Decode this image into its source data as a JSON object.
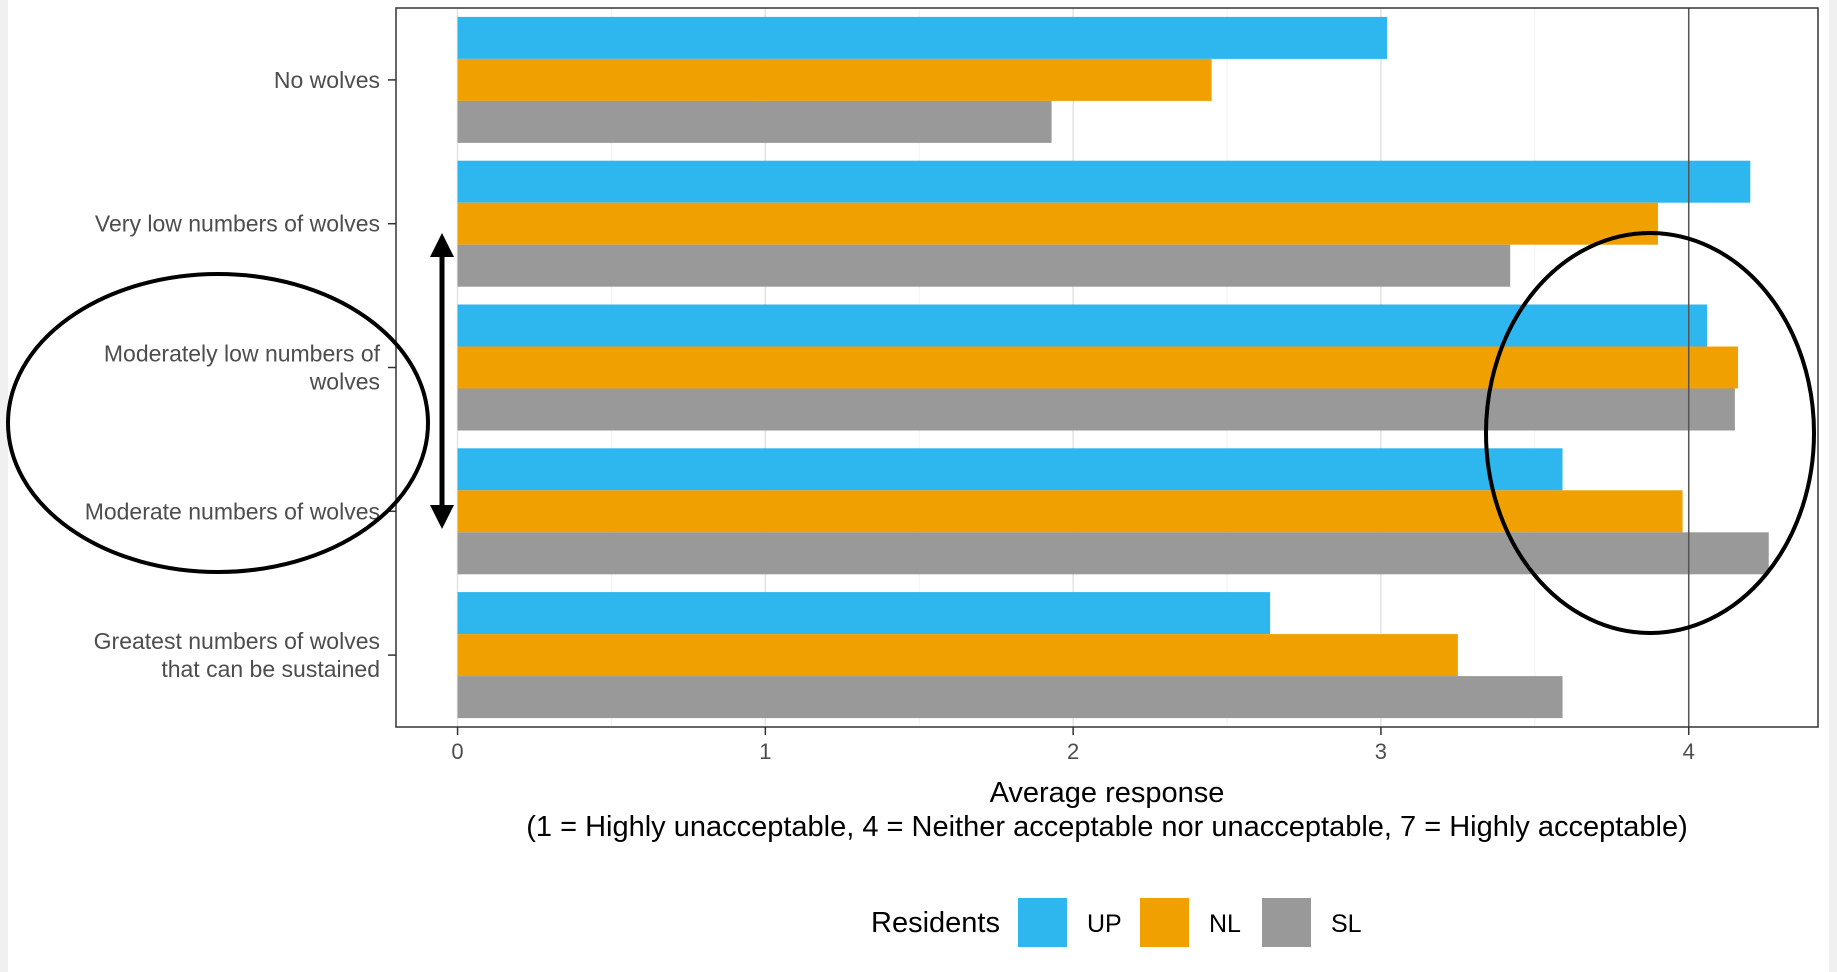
{
  "chart_data": {
    "type": "bar",
    "orientation": "horizontal",
    "categories": [
      [
        "No wolves"
      ],
      [
        "Very low numbers of wolves"
      ],
      [
        "Moderately low numbers of",
        "wolves"
      ],
      [
        "Moderate numbers of wolves"
      ],
      [
        "Greatest numbers of wolves",
        "that can be sustained"
      ]
    ],
    "series": [
      {
        "name": "UP",
        "color": "#2eb6ee",
        "values": [
          3.02,
          4.2,
          4.06,
          3.59,
          2.64
        ]
      },
      {
        "name": "NL",
        "color": "#f0a000",
        "values": [
          2.45,
          3.9,
          4.16,
          3.98,
          3.25
        ]
      },
      {
        "name": "SL",
        "color": "#999999",
        "values": [
          1.93,
          3.42,
          4.15,
          4.26,
          3.59
        ]
      }
    ],
    "xlim": [
      -0.2,
      4.42
    ],
    "xticks": [
      0,
      1,
      2,
      3,
      4
    ],
    "reference_line_x": 4,
    "xlabel_line1": "Average response",
    "xlabel_line2": "(1 = Highly unacceptable, 4 = Neither acceptable nor unacceptable, 7 = Highly acceptable)",
    "legend": {
      "title": "Residents",
      "position": "bottom"
    },
    "grid": true,
    "annotations": [
      "ellipse around category labels",
      "double-headed arrow",
      "ellipse around values near 4"
    ]
  }
}
